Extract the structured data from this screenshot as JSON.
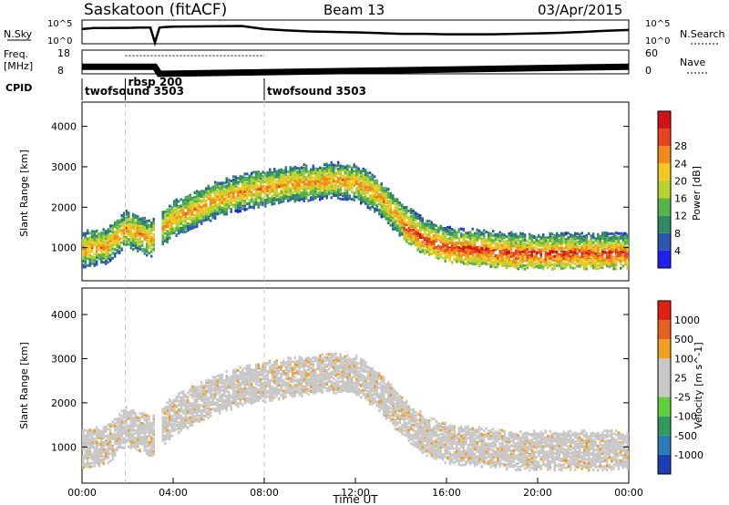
{
  "header": {
    "station": "Saskatoon (fitACF)",
    "beam": "Beam 13",
    "date": "03/Apr/2015"
  },
  "chart_data": [
    {
      "type": "line",
      "panel": "noise",
      "left_label": "N.Sky",
      "right_label": "N.Search",
      "left_ticks": [
        "10^5",
        "10^0"
      ],
      "right_ticks": [
        "10^5",
        "10^0"
      ],
      "series": [
        {
          "name": "N.Sky",
          "x": [
            0,
            0.5,
            1,
            1.5,
            2,
            2.5,
            3,
            3.2,
            3.4,
            3.6,
            4,
            5,
            6,
            7,
            8,
            9,
            10,
            11,
            12,
            13,
            14,
            15,
            16,
            17,
            18,
            19,
            20,
            21,
            22,
            23,
            24
          ],
          "y": [
            0.62,
            0.66,
            0.66,
            0.67,
            0.67,
            0.68,
            0.68,
            0.05,
            0.68,
            0.7,
            0.72,
            0.73,
            0.74,
            0.75,
            0.62,
            0.56,
            0.52,
            0.5,
            0.48,
            0.45,
            0.42,
            0.42,
            0.4,
            0.4,
            0.4,
            0.42,
            0.44,
            0.46,
            0.5,
            0.55,
            0.58
          ]
        }
      ]
    },
    {
      "type": "line",
      "panel": "frequency",
      "left_label": "Freq.",
      "left_unit": "[MHz]",
      "right_label": "Nave",
      "left_ticks": [
        "18",
        "8"
      ],
      "right_ticks": [
        "60",
        "0"
      ],
      "series": [
        {
          "name": "Freq.",
          "x": [
            0,
            3.2,
            3.4,
            24
          ],
          "y": [
            11,
            11,
            8,
            11
          ]
        },
        {
          "name": "Nave",
          "x": [
            1.9,
            8.0
          ],
          "y": [
            46,
            46
          ]
        }
      ]
    },
    {
      "type": "table",
      "panel": "cpid",
      "label": "CPID",
      "programs": [
        {
          "name": "twofsound 3503",
          "start": 0
        },
        {
          "name": "rbsp 200",
          "start": 1.9
        },
        {
          "name": "twofsound 3503",
          "start": 8.0
        }
      ]
    },
    {
      "type": "heatmap",
      "panel": "power",
      "ylabel": "Slant Range [km]",
      "ylim": [
        180,
        4600
      ],
      "yticks": [
        1000,
        2000,
        3000,
        4000
      ],
      "colorbar": {
        "label": "Power [dB]",
        "ticks": [
          4,
          8,
          12,
          16,
          20,
          24,
          28
        ],
        "colors": [
          "#1f1ff0",
          "#2b55b0",
          "#2f8a64",
          "#55b44a",
          "#b8d22c",
          "#f0c81e",
          "#f08a1a",
          "#e8421e",
          "#d01414"
        ]
      },
      "bands": [
        {
          "x": [
            0,
            1,
            1.9,
            3,
            4,
            5,
            6,
            7,
            8,
            9,
            10,
            11,
            12,
            13,
            14,
            15,
            16,
            17,
            18,
            19,
            20,
            21,
            22,
            23,
            24
          ],
          "y": [
            1000,
            1050,
            1500,
            1250,
            1750,
            2000,
            2250,
            2400,
            2500,
            2600,
            2650,
            2700,
            2650,
            2300,
            1700,
            1300,
            1100,
            1050,
            1000,
            950,
            950,
            950,
            950,
            950,
            950
          ],
          "value": 18
        }
      ]
    },
    {
      "type": "heatmap",
      "panel": "velocity",
      "ylabel": "Slant Range [km]",
      "ylim": [
        180,
        4600
      ],
      "yticks": [
        1000,
        2000,
        3000,
        4000
      ],
      "xlabel": "Time UT",
      "xticks": [
        "00:00",
        "04:00",
        "08:00",
        "12:00",
        "16:00",
        "20:00",
        "00:00"
      ],
      "xlim": [
        0,
        24
      ],
      "colorbar": {
        "label": "Velocity [m s^-1]",
        "ticks": [
          1000,
          500,
          100,
          25,
          -25,
          -100,
          -500,
          -1000
        ],
        "colors": [
          "#1a3eb4",
          "#2a7ab8",
          "#2f9a5c",
          "#5fcf3a",
          "#c8c8c8",
          "#c8c8c8",
          "#f0a020",
          "#e86020",
          "#e02010"
        ]
      }
    }
  ]
}
